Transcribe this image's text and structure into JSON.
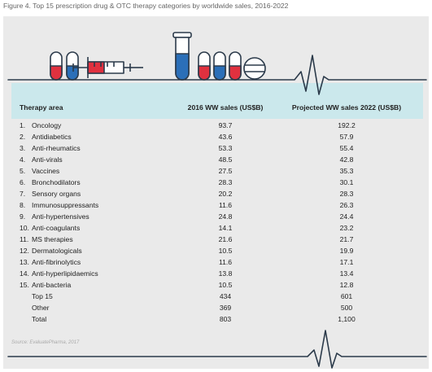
{
  "figure": {
    "title": "Figure 4. Top 15 prescription drug & OTC therapy categories by worldwide sales, 2016-2022"
  },
  "colors": {
    "panel": "#eaeaea",
    "header_band": "#cbe8ec",
    "outline": "#2b3a4a",
    "red": "#e0313f",
    "blue": "#2b6fb8",
    "light_blue": "#7ec8e3"
  },
  "icons": [
    "pill-capsule-icon",
    "syringe-icon",
    "test-tube-icon",
    "pill-tablet-icon",
    "heartbeat-line-icon"
  ],
  "table": {
    "headers": {
      "area": "Therapy area",
      "sales_2016": "2016 WW sales (US$B)",
      "sales_2022": "Projected WW sales 2022 (US$B)"
    },
    "rows": [
      {
        "num": "1.",
        "area": "Oncology",
        "sales_2016": "93.7",
        "sales_2022": "192.2"
      },
      {
        "num": "2.",
        "area": "Antidiabetics",
        "sales_2016": "43.6",
        "sales_2022": "57.9"
      },
      {
        "num": "3.",
        "area": "Anti-rheumatics",
        "sales_2016": "53.3",
        "sales_2022": "55.4"
      },
      {
        "num": "4.",
        "area": "Anti-virals",
        "sales_2016": "48.5",
        "sales_2022": "42.8"
      },
      {
        "num": "5.",
        "area": "Vaccines",
        "sales_2016": "27.5",
        "sales_2022": "35.3"
      },
      {
        "num": "6.",
        "area": "Bronchodilators",
        "sales_2016": "28.3",
        "sales_2022": "30.1"
      },
      {
        "num": "7.",
        "area": "Sensory organs",
        "sales_2016": "20.2",
        "sales_2022": "28.3"
      },
      {
        "num": "8.",
        "area": "Immunosuppressants",
        "sales_2016": "11.6",
        "sales_2022": "26.3"
      },
      {
        "num": "9.",
        "area": "Anti-hypertensives",
        "sales_2016": "24.8",
        "sales_2022": "24.4"
      },
      {
        "num": "10.",
        "area": "Anti-coagulants",
        "sales_2016": "14.1",
        "sales_2022": "23.2"
      },
      {
        "num": "11.",
        "area": "MS therapies",
        "sales_2016": "21.6",
        "sales_2022": "21.7"
      },
      {
        "num": "12.",
        "area": "Dermatologicals",
        "sales_2016": "10.5",
        "sales_2022": "19.9"
      },
      {
        "num": "13.",
        "area": "Anti-fibrinolytics",
        "sales_2016": "11.6",
        "sales_2022": "17.1"
      },
      {
        "num": "14.",
        "area": "Anti-hyperlipidaemics",
        "sales_2016": "13.8",
        "sales_2022": "13.4"
      },
      {
        "num": "15.",
        "area": "Anti-bacteria",
        "sales_2016": "10.5",
        "sales_2022": "12.8"
      }
    ],
    "totals": [
      {
        "area": "Top 15",
        "sales_2016": "434",
        "sales_2022": "601"
      },
      {
        "area": "Other",
        "sales_2016": "369",
        "sales_2022": "500"
      },
      {
        "area": "Total",
        "sales_2016": "803",
        "sales_2022": "1,100"
      }
    ]
  },
  "source": "Source: EvaluatePharma, 2017"
}
